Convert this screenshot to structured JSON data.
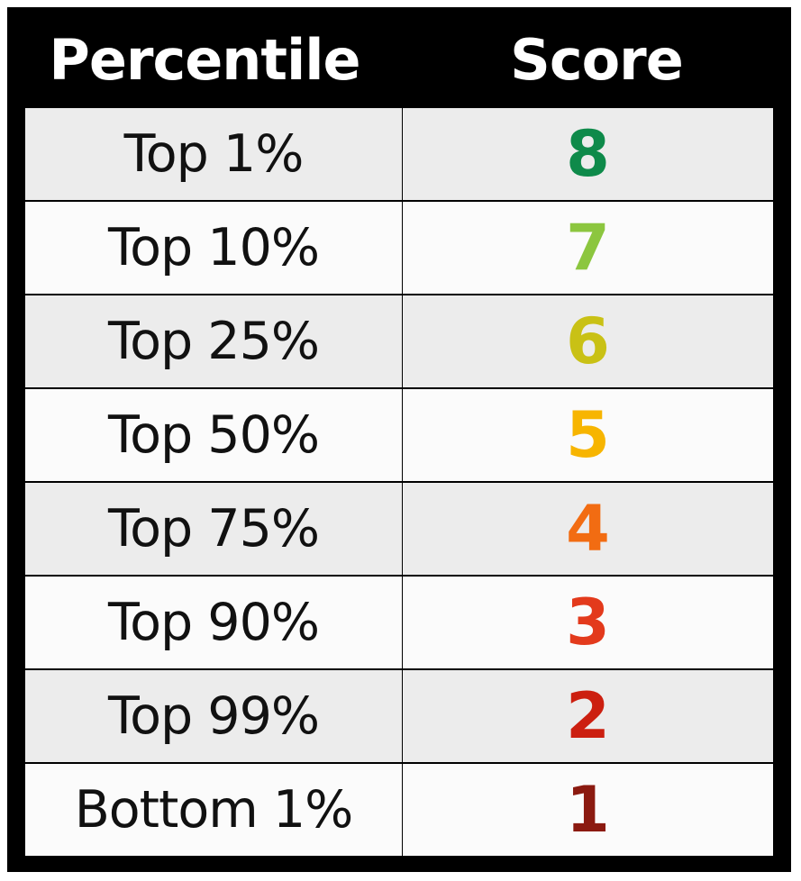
{
  "table": {
    "headers": {
      "percentile": "Percentile",
      "score": "Score"
    },
    "rows": [
      {
        "percentile": "Top 1%",
        "score": "8",
        "score_color": "#0e8a4a"
      },
      {
        "percentile": "Top 10%",
        "score": "7",
        "score_color": "#8cc63f"
      },
      {
        "percentile": "Top 25%",
        "score": "6",
        "score_color": "#c9c115"
      },
      {
        "percentile": "Top 50%",
        "score": "5",
        "score_color": "#f7b500"
      },
      {
        "percentile": "Top 75%",
        "score": "4",
        "score_color": "#f26c12"
      },
      {
        "percentile": "Top 90%",
        "score": "3",
        "score_color": "#e33a1c"
      },
      {
        "percentile": "Top 99%",
        "score": "2",
        "score_color": "#cc1f10"
      },
      {
        "percentile": "Bottom 1%",
        "score": "1",
        "score_color": "#8b1a10"
      }
    ]
  }
}
